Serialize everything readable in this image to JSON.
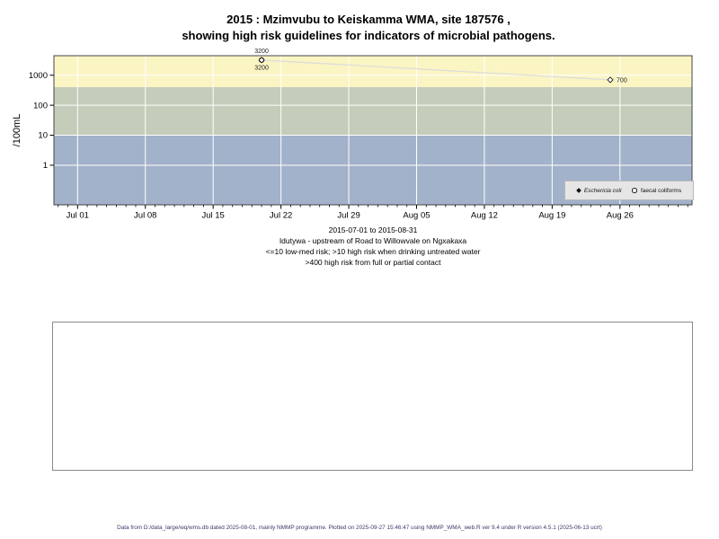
{
  "title": {
    "line1": "2015 : Mzimvubu to Keiskamma WMA, site 187576 ,",
    "line2": "showing high risk guidelines for indicators of microbial pathogens."
  },
  "caption": {
    "line1": "2015-07-01 to 2015-08-31",
    "line2": "Idutywa - upstream of Road to Willowvale on Ngxakaxa",
    "line3": "<=10 low-med risk; >10 high risk when drinking untreated water",
    "line4": ">400 high risk from full or partial contact"
  },
  "legend": {
    "items": [
      {
        "label": "Eschericia coli",
        "marker": "filled-diamond",
        "italic": true
      },
      {
        "label": "faecal coliforms",
        "marker": "open-circle",
        "italic": false
      }
    ]
  },
  "footer": {
    "text": "Data from D:/data_large/wq/wms.db dated 2025-08-01, mainly NMMP programme. Plotted on 2025-09-27 15:46:47 using NMMP_WMA_web.R ver 9.4 under R version 4.5.1 (2025-06-13 ucrt)"
  },
  "colors": {
    "band_high_risk_contact": "#FBF5C4",
    "band_high_risk_drinking": "#C4CDB9",
    "band_low_med_risk": "#A3B2CB",
    "gridline": "#FFFFFF",
    "series_line": "#DBDBDB",
    "axis": "#000000",
    "plot_border": "#444444",
    "footer_text": "#3b3b6b"
  },
  "chart_data": {
    "type": "scatter",
    "title": "2015 : Mzimvubu to Keiskamma WMA, site 187576 , showing high risk guidelines for indicators of microbial pathogens.",
    "xlabel": "",
    "ylabel": "/100mL",
    "y_scale": "log10",
    "ylim": [
      0.048,
      4470
    ],
    "y_ticks": [
      1,
      10,
      100,
      1000
    ],
    "grid": true,
    "legend_position": "bottom-right",
    "x_period": {
      "start": "2015-07-01",
      "end": "2015-08-31",
      "span_days": 61,
      "pad_days": 2.44
    },
    "x_ticks": [
      {
        "label": "Jul 01",
        "day": 0
      },
      {
        "label": "Jul 08",
        "day": 7
      },
      {
        "label": "Jul 15",
        "day": 14
      },
      {
        "label": "Jul 22",
        "day": 21
      },
      {
        "label": "Jul 29",
        "day": 28
      },
      {
        "label": "Aug 05",
        "day": 35
      },
      {
        "label": "Aug 12",
        "day": 42
      },
      {
        "label": "Aug 19",
        "day": 49
      },
      {
        "label": "Aug 26",
        "day": 56
      }
    ],
    "bands": [
      {
        "name": "high risk from full or partial contact (>400)",
        "from": 400,
        "to": 4470,
        "color": "#FBF5C4"
      },
      {
        "name": "high risk when drinking untreated water (>10)",
        "from": 10,
        "to": 400,
        "color": "#C4CDB9"
      },
      {
        "name": "low-med risk (<=10)",
        "from": 0.048,
        "to": 10,
        "color": "#A3B2CB"
      }
    ],
    "series": [
      {
        "name": "Eschericia coli",
        "marker": "diamond",
        "connect_line": true,
        "line_color": "#DBDBDB",
        "points": [
          {
            "day": 19,
            "approx_date": "2015-07-20",
            "value": 3200,
            "label": "3200",
            "label_pos": "below"
          },
          {
            "day": 55,
            "approx_date": "2015-08-25",
            "value": 700,
            "label": "700",
            "label_pos": "right"
          }
        ]
      },
      {
        "name": "faecal coliforms",
        "marker": "circle",
        "connect_line": false,
        "points": [
          {
            "day": 19,
            "approx_date": "2015-07-20",
            "value": 3200,
            "label": "3200",
            "label_pos": "above"
          }
        ]
      }
    ]
  }
}
